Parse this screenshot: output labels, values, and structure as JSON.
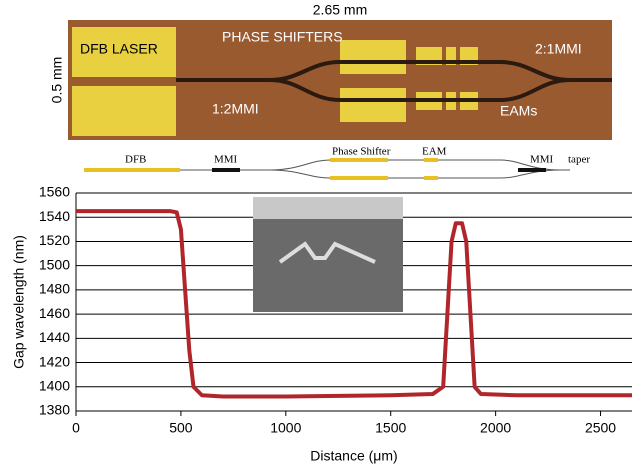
{
  "photo": {
    "width_label": "2.65 mm",
    "height_label": "0.5 mm",
    "labels": [
      "DFB LASER",
      "PHASE SHIFTERS",
      "2:1MMI",
      "1:2MMI",
      "EAMs"
    ]
  },
  "schematic": {
    "labels": [
      "DFB",
      "MMI",
      "Phase Shifter",
      "EAM",
      "MMI",
      "taper"
    ]
  },
  "chart_data": {
    "type": "line",
    "x_label": "Distance (μm)",
    "y_label": "Gap wavelength (nm)",
    "x": [
      0,
      450,
      480,
      500,
      520,
      540,
      560,
      600,
      700,
      1000,
      1500,
      1700,
      1750,
      1770,
      1790,
      1810,
      1840,
      1860,
      1880,
      1900,
      1930,
      2100,
      2650
    ],
    "series": [
      {
        "color": "#b0262a",
        "values": [
          1545,
          1545,
          1544,
          1530,
          1480,
          1430,
          1400,
          1393,
          1392,
          1392,
          1393,
          1394,
          1400,
          1460,
          1520,
          1535,
          1535,
          1520,
          1460,
          1400,
          1394,
          1393,
          1393
        ]
      }
    ],
    "xlim": [
      0,
      2650
    ],
    "xticks": [
      0,
      500,
      1000,
      1500,
      2000,
      2500
    ],
    "ylim": [
      1380,
      1560
    ],
    "yticks": [
      1380,
      1400,
      1420,
      1440,
      1460,
      1480,
      1500,
      1520,
      1540,
      1560
    ],
    "grid": true
  }
}
